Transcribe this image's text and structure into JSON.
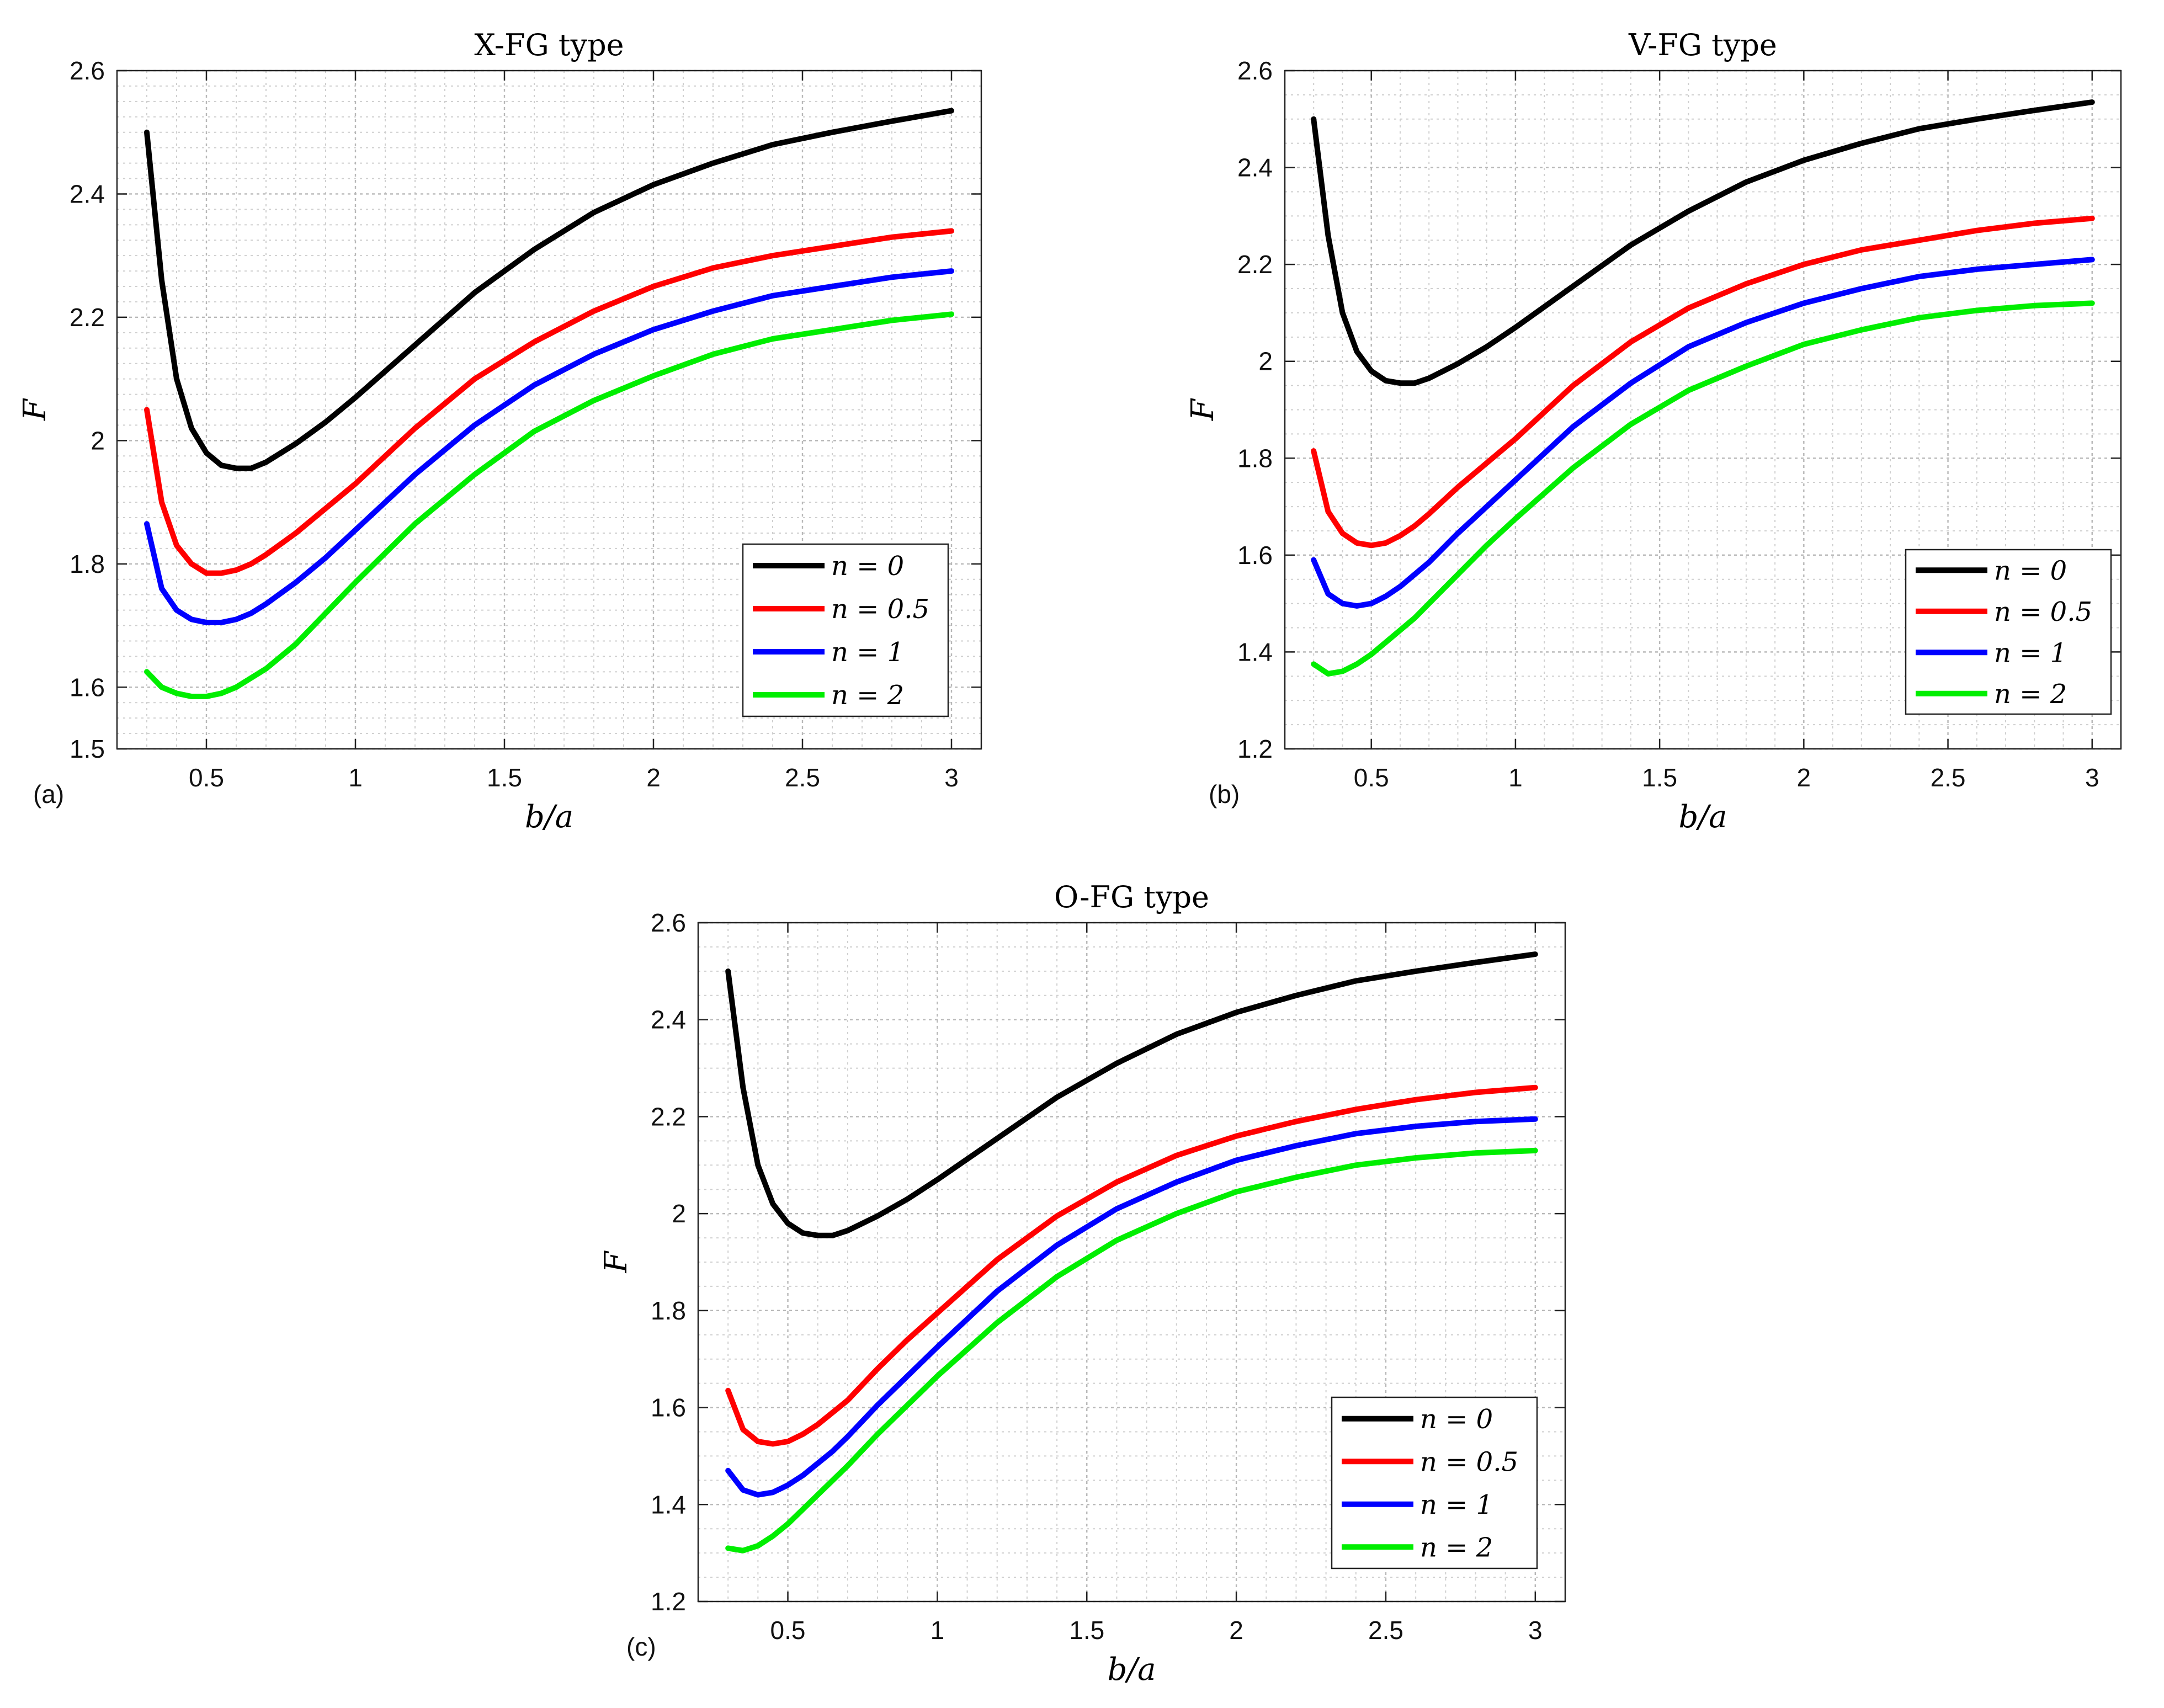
{
  "chart_data": [
    {
      "type": "line",
      "panel_label": "(a)",
      "title": "X-FG type",
      "xlabel": "b/a",
      "ylabel": "F",
      "xlim": [
        0.2,
        3.1
      ],
      "ylim": [
        1.5,
        2.6
      ],
      "xticks": [
        0.5,
        1,
        1.5,
        2,
        2.5,
        3
      ],
      "yticks": [
        1.5,
        1.6,
        1.8,
        2,
        2.2,
        2.4,
        2.6
      ],
      "grid": true,
      "legend_position": "lower-right",
      "series": [
        {
          "name": "n = 0",
          "color": "#000000",
          "x": [
            0.3,
            0.35,
            0.4,
            0.45,
            0.5,
            0.55,
            0.6,
            0.65,
            0.7,
            0.8,
            0.9,
            1.0,
            1.2,
            1.4,
            1.6,
            1.8,
            2.0,
            2.2,
            2.4,
            2.6,
            2.8,
            3.0
          ],
          "y": [
            2.5,
            2.26,
            2.1,
            2.02,
            1.98,
            1.96,
            1.955,
            1.955,
            1.965,
            1.995,
            2.03,
            2.07,
            2.155,
            2.24,
            2.31,
            2.37,
            2.415,
            2.45,
            2.48,
            2.5,
            2.518,
            2.535
          ]
        },
        {
          "name": "n = 0.5",
          "color": "#ff0000",
          "x": [
            0.3,
            0.35,
            0.4,
            0.45,
            0.5,
            0.55,
            0.6,
            0.65,
            0.7,
            0.8,
            0.9,
            1.0,
            1.2,
            1.4,
            1.6,
            1.8,
            2.0,
            2.2,
            2.4,
            2.6,
            2.8,
            3.0
          ],
          "y": [
            2.05,
            1.9,
            1.83,
            1.8,
            1.785,
            1.785,
            1.79,
            1.8,
            1.815,
            1.85,
            1.89,
            1.93,
            2.02,
            2.1,
            2.16,
            2.21,
            2.25,
            2.28,
            2.3,
            2.315,
            2.33,
            2.34
          ]
        },
        {
          "name": "n = 1",
          "color": "#0000ff",
          "x": [
            0.3,
            0.35,
            0.4,
            0.45,
            0.5,
            0.55,
            0.6,
            0.65,
            0.7,
            0.8,
            0.9,
            1.0,
            1.2,
            1.4,
            1.6,
            1.8,
            2.0,
            2.2,
            2.4,
            2.6,
            2.8,
            3.0
          ],
          "y": [
            1.865,
            1.76,
            1.725,
            1.71,
            1.705,
            1.705,
            1.71,
            1.72,
            1.735,
            1.77,
            1.81,
            1.855,
            1.945,
            2.025,
            2.09,
            2.14,
            2.18,
            2.21,
            2.235,
            2.25,
            2.265,
            2.275
          ]
        },
        {
          "name": "n = 2",
          "color": "#00ee00",
          "x": [
            0.3,
            0.35,
            0.4,
            0.45,
            0.5,
            0.55,
            0.6,
            0.65,
            0.7,
            0.8,
            0.9,
            1.0,
            1.2,
            1.4,
            1.6,
            1.8,
            2.0,
            2.2,
            2.4,
            2.6,
            2.8,
            3.0
          ],
          "y": [
            1.625,
            1.6,
            1.59,
            1.585,
            1.585,
            1.59,
            1.6,
            1.615,
            1.63,
            1.67,
            1.72,
            1.77,
            1.865,
            1.945,
            2.015,
            2.065,
            2.105,
            2.14,
            2.165,
            2.18,
            2.195,
            2.205
          ]
        }
      ]
    },
    {
      "type": "line",
      "panel_label": "(b)",
      "title": "V-FG type",
      "xlabel": "b/a",
      "ylabel": "F",
      "xlim": [
        0.2,
        3.1
      ],
      "ylim": [
        1.2,
        2.6
      ],
      "xticks": [
        0.5,
        1,
        1.5,
        2,
        2.5,
        3
      ],
      "yticks": [
        1.2,
        1.4,
        1.6,
        1.8,
        2,
        2.2,
        2.4,
        2.6
      ],
      "grid": true,
      "legend_position": "lower-right",
      "series": [
        {
          "name": "n = 0",
          "color": "#000000",
          "x": [
            0.3,
            0.35,
            0.4,
            0.45,
            0.5,
            0.55,
            0.6,
            0.65,
            0.7,
            0.8,
            0.9,
            1.0,
            1.2,
            1.4,
            1.6,
            1.8,
            2.0,
            2.2,
            2.4,
            2.6,
            2.8,
            3.0
          ],
          "y": [
            2.5,
            2.26,
            2.1,
            2.02,
            1.98,
            1.96,
            1.955,
            1.955,
            1.965,
            1.995,
            2.03,
            2.07,
            2.155,
            2.24,
            2.31,
            2.37,
            2.415,
            2.45,
            2.48,
            2.5,
            2.518,
            2.535
          ]
        },
        {
          "name": "n = 0.5",
          "color": "#ff0000",
          "x": [
            0.3,
            0.35,
            0.4,
            0.45,
            0.5,
            0.55,
            0.6,
            0.65,
            0.7,
            0.8,
            0.9,
            1.0,
            1.2,
            1.4,
            1.6,
            1.8,
            2.0,
            2.2,
            2.4,
            2.6,
            2.8,
            3.0
          ],
          "y": [
            1.815,
            1.69,
            1.645,
            1.625,
            1.62,
            1.625,
            1.64,
            1.66,
            1.685,
            1.74,
            1.79,
            1.84,
            1.95,
            2.04,
            2.11,
            2.16,
            2.2,
            2.23,
            2.25,
            2.27,
            2.285,
            2.295
          ]
        },
        {
          "name": "n = 1",
          "color": "#0000ff",
          "x": [
            0.3,
            0.35,
            0.4,
            0.45,
            0.5,
            0.55,
            0.6,
            0.65,
            0.7,
            0.8,
            0.9,
            1.0,
            1.2,
            1.4,
            1.6,
            1.8,
            2.0,
            2.2,
            2.4,
            2.6,
            2.8,
            3.0
          ],
          "y": [
            1.59,
            1.52,
            1.5,
            1.495,
            1.5,
            1.515,
            1.535,
            1.56,
            1.585,
            1.645,
            1.7,
            1.755,
            1.865,
            1.955,
            2.03,
            2.08,
            2.12,
            2.15,
            2.175,
            2.19,
            2.2,
            2.21
          ]
        },
        {
          "name": "n = 2",
          "color": "#00ee00",
          "x": [
            0.3,
            0.35,
            0.4,
            0.45,
            0.5,
            0.55,
            0.6,
            0.65,
            0.7,
            0.8,
            0.9,
            1.0,
            1.2,
            1.4,
            1.6,
            1.8,
            2.0,
            2.2,
            2.4,
            2.6,
            2.8,
            3.0
          ],
          "y": [
            1.375,
            1.355,
            1.36,
            1.375,
            1.395,
            1.42,
            1.445,
            1.47,
            1.5,
            1.56,
            1.62,
            1.675,
            1.78,
            1.87,
            1.94,
            1.99,
            2.035,
            2.065,
            2.09,
            2.105,
            2.115,
            2.12
          ]
        }
      ]
    },
    {
      "type": "line",
      "panel_label": "(c)",
      "title": "O-FG type",
      "xlabel": "b/a",
      "ylabel": "F",
      "xlim": [
        0.2,
        3.1
      ],
      "ylim": [
        1.2,
        2.6
      ],
      "xticks": [
        0.5,
        1,
        1.5,
        2,
        2.5,
        3
      ],
      "yticks": [
        1.2,
        1.4,
        1.6,
        1.8,
        2,
        2.2,
        2.4,
        2.6
      ],
      "grid": true,
      "legend_position": "lower-right",
      "series": [
        {
          "name": "n = 0",
          "color": "#000000",
          "x": [
            0.3,
            0.35,
            0.4,
            0.45,
            0.5,
            0.55,
            0.6,
            0.65,
            0.7,
            0.8,
            0.9,
            1.0,
            1.2,
            1.4,
            1.6,
            1.8,
            2.0,
            2.2,
            2.4,
            2.6,
            2.8,
            3.0
          ],
          "y": [
            2.5,
            2.26,
            2.1,
            2.02,
            1.98,
            1.96,
            1.955,
            1.955,
            1.965,
            1.995,
            2.03,
            2.07,
            2.155,
            2.24,
            2.31,
            2.37,
            2.415,
            2.45,
            2.48,
            2.5,
            2.518,
            2.535
          ]
        },
        {
          "name": "n = 0.5",
          "color": "#ff0000",
          "x": [
            0.3,
            0.35,
            0.4,
            0.45,
            0.5,
            0.55,
            0.6,
            0.65,
            0.7,
            0.8,
            0.9,
            1.0,
            1.2,
            1.4,
            1.6,
            1.8,
            2.0,
            2.2,
            2.4,
            2.6,
            2.8,
            3.0
          ],
          "y": [
            1.635,
            1.555,
            1.53,
            1.525,
            1.53,
            1.545,
            1.565,
            1.59,
            1.615,
            1.68,
            1.74,
            1.795,
            1.905,
            1.995,
            2.065,
            2.12,
            2.16,
            2.19,
            2.215,
            2.235,
            2.25,
            2.26
          ]
        },
        {
          "name": "n = 1",
          "color": "#0000ff",
          "x": [
            0.3,
            0.35,
            0.4,
            0.45,
            0.5,
            0.55,
            0.6,
            0.65,
            0.7,
            0.8,
            0.9,
            1.0,
            1.2,
            1.4,
            1.6,
            1.8,
            2.0,
            2.2,
            2.4,
            2.6,
            2.8,
            3.0
          ],
          "y": [
            1.47,
            1.43,
            1.42,
            1.425,
            1.44,
            1.46,
            1.485,
            1.51,
            1.54,
            1.605,
            1.665,
            1.725,
            1.84,
            1.935,
            2.01,
            2.065,
            2.11,
            2.14,
            2.165,
            2.18,
            2.19,
            2.195
          ]
        },
        {
          "name": "n = 2",
          "color": "#00ee00",
          "x": [
            0.3,
            0.35,
            0.4,
            0.45,
            0.5,
            0.55,
            0.6,
            0.65,
            0.7,
            0.8,
            0.9,
            1.0,
            1.2,
            1.4,
            1.6,
            1.8,
            2.0,
            2.2,
            2.4,
            2.6,
            2.8,
            3.0
          ],
          "y": [
            1.31,
            1.305,
            1.315,
            1.335,
            1.36,
            1.39,
            1.42,
            1.45,
            1.48,
            1.545,
            1.605,
            1.665,
            1.775,
            1.87,
            1.945,
            2.0,
            2.045,
            2.075,
            2.1,
            2.115,
            2.125,
            2.13
          ]
        }
      ]
    }
  ]
}
